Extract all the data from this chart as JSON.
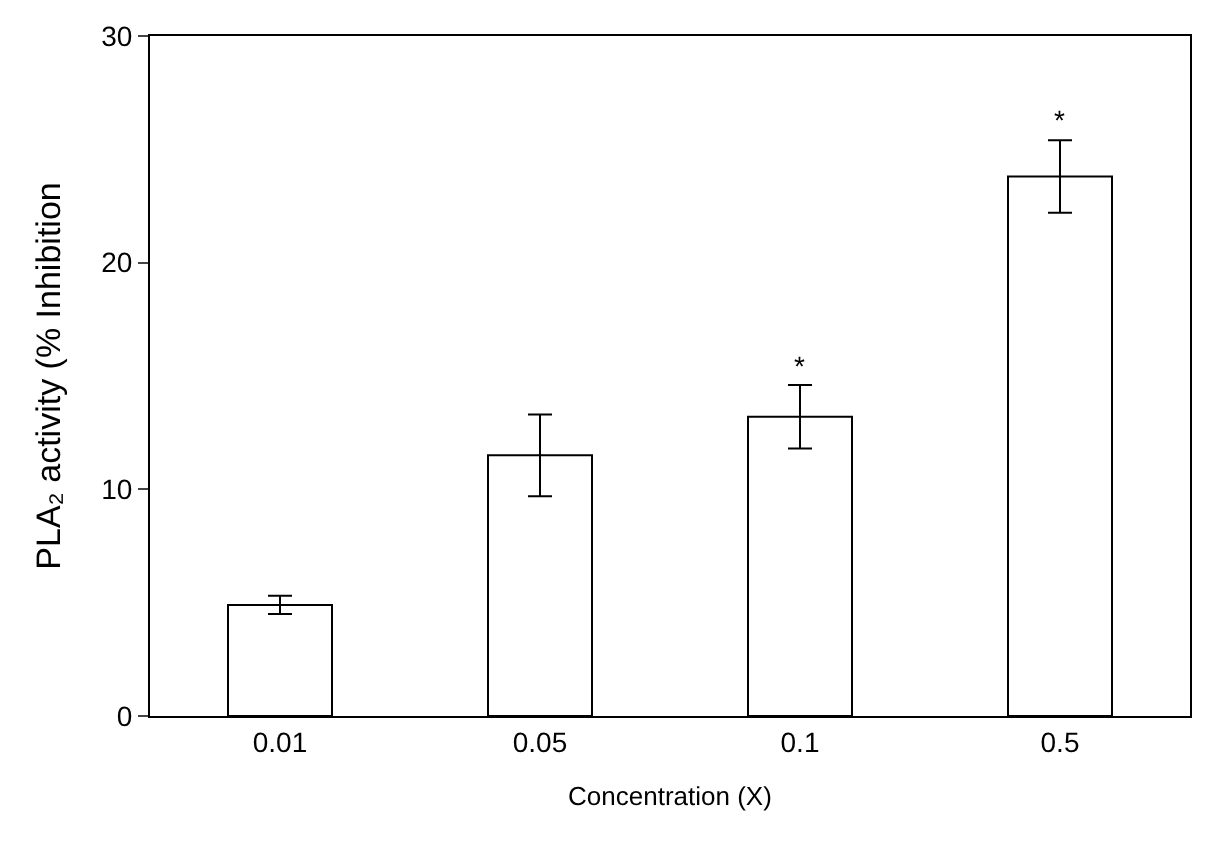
{
  "chart_data": {
    "type": "bar",
    "xlabel": "Concentration (X)",
    "ylabel": "PLA₂ activity (% Inhibition",
    "categories": [
      "0.01",
      "0.05",
      "0.1",
      "0.5"
    ],
    "values": [
      4.9,
      11.5,
      13.2,
      23.8
    ],
    "errors": [
      0.4,
      1.8,
      1.4,
      1.6
    ],
    "color": "#ffffff",
    "ylim": [
      0,
      30
    ],
    "yticks": [
      0,
      10,
      20,
      30
    ],
    "annotations": [
      {
        "text": "*",
        "x": "0.1",
        "y": 14.6
      },
      {
        "text": "*",
        "x": "0.5",
        "y": 25.4
      }
    ]
  }
}
